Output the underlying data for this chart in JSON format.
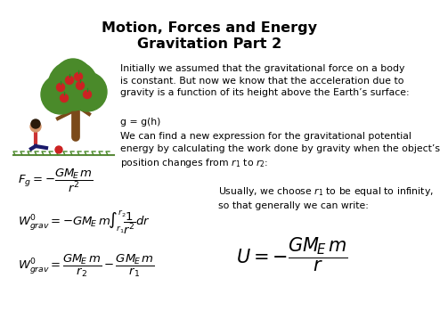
{
  "title_line1": "Motion, Forces and Energy",
  "title_line2": "Gravitation Part 2",
  "bg_color": "#ffffff",
  "title_fontsize": 11.5,
  "text_fontsize": 7.8,
  "math_fontsize_small": 9.5,
  "math_fontsize_large": 15,
  "body_text1": "Initially we assumed that the gravitational force on a body\nis constant. But now we know that the acceleration due to\ngravity is a function of its height above the Earth’s surface:",
  "body_text2": "g = g(h)",
  "body_text3": "We can find a new expression for the gravitational potential\nenergy by calculating the work done by gravity when the object’s\nposition changes from $r_1$ to $r_2$:",
  "body_text4": "Usually, we choose $r_1$ to be equal to infinity,\nso that generally we can write:",
  "eq1": "$F_g = -\\dfrac{GM_{\\!E}\\,m}{r^2}$",
  "eq2": "$W_{grav}^{\\prime} = -GM_{\\!E}\\,m\\!\\int_{r_1}^{r_2}\\!\\dfrac{1}{r^2}dr$",
  "eq3": "$W_{grav}^{\\prime} = \\dfrac{GM_{\\!E}\\,m}{r_2} - \\dfrac{GM_{\\!E}\\,m}{r_1}$",
  "eq4": "$U = -\\dfrac{GM_{\\!E}\\,m}{r}$"
}
